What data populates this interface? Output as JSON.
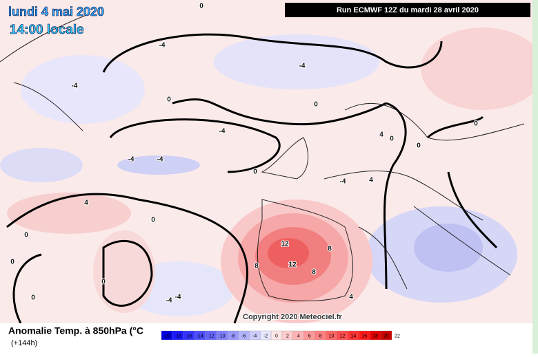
{
  "header": {
    "date": "lundi 4 mai 2020",
    "time": "14:00 locale",
    "run": "Run ECMWF 12Z du mardi 28 avril 2020"
  },
  "copyright": "Copyright 2020 Meteociel.fr",
  "legend": {
    "title": "Anomalie Temp. à 850hPa (°C",
    "lead": "(+144h)",
    "ticks": [
      -20,
      -18,
      -16,
      -14,
      -12,
      -10,
      -8,
      -6,
      -4,
      -2,
      0,
      2,
      4,
      6,
      8,
      10,
      12,
      14,
      16,
      18,
      20,
      22
    ],
    "colors": [
      "#0000e0",
      "#1a1aff",
      "#3333ff",
      "#4d4dff",
      "#6666ff",
      "#8080ff",
      "#9999ff",
      "#b3b3ff",
      "#ccccff",
      "#e6e6ff",
      "#ffe6e6",
      "#ffcccc",
      "#ffb3b3",
      "#ff9999",
      "#ff8080",
      "#ff6666",
      "#ff4d4d",
      "#ff3333",
      "#ff1a1a",
      "#e60000",
      "#cc0000"
    ]
  },
  "contours": {
    "labels": [
      "0",
      "-4",
      "-4",
      "0",
      "-4",
      "0",
      "-4",
      "-4",
      "-4",
      "4",
      "0",
      "4",
      "0",
      "0",
      "0",
      "0",
      "0",
      "12",
      "12",
      "8",
      "8",
      "8",
      "4",
      "-4",
      "4",
      "0",
      "0",
      "-4",
      "-4",
      "0"
    ]
  }
}
